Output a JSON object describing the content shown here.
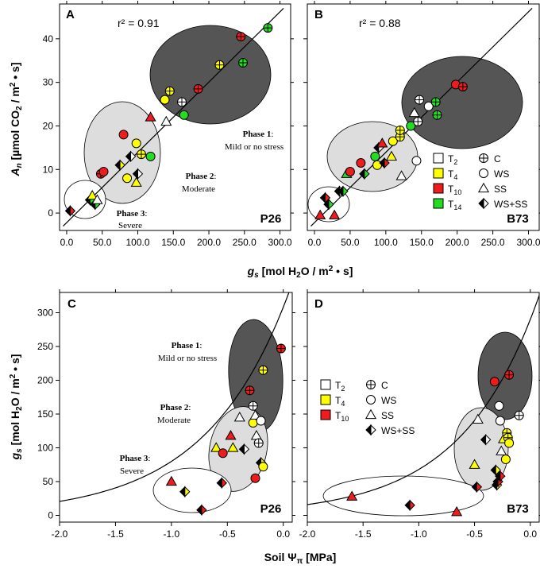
{
  "figure": {
    "shared_labels": {
      "top_x_axis": "g_s [mol H2O / m2 • s]",
      "top_y_axis": "A_n [µmol CO2 / m2 • s]",
      "bottom_x_axis": "Soil Ψπ [MPa]",
      "bottom_y_axis": "g_s [mol H2O / m2 • s]"
    },
    "labels": {
      "A": "A",
      "B": "B",
      "C": "C",
      "D": "D",
      "r2_A": "r² = 0.91",
      "r2_B": "r² = 0.88",
      "genotype_A": "P26",
      "genotype_B": "B73",
      "genotype_C": "P26",
      "genotype_D": "B73",
      "phase1_title": "Phase 1",
      "phase1_desc": "Mild or no stress",
      "phase2_title": "Phase 2",
      "phase2_desc": "Moderate",
      "phase3_title": "Phase 3",
      "phase3_desc": "Severe"
    },
    "legend_B": {
      "timepoints": [
        "T2",
        "T4",
        "T10",
        "T14"
      ],
      "treatments": [
        "C",
        "WS",
        "SS",
        "WS+SS"
      ]
    },
    "legend_D": {
      "timepoints": [
        "T2",
        "T4",
        "T10"
      ],
      "treatments": [
        "C",
        "WS",
        "SS",
        "WS+SS"
      ]
    },
    "colors": {
      "T2": "#ffffff",
      "T4": "#ffff00",
      "T10": "#ee1c1c",
      "T14": "#22dd22",
      "phase1": "#555555",
      "phase2": "#dddddd",
      "phase3": "#ffffff"
    }
  },
  "chart_data": [
    {
      "panel": "A",
      "type": "scatter",
      "genotype": "P26",
      "r2": 0.91,
      "xlabel": "g_s [mol H2O / m2 • s]",
      "ylabel": "A_n [µmol CO2 / m2 • s]",
      "xlim": [
        -10,
        315
      ],
      "ylim": [
        -4,
        48
      ],
      "xticks": [
        0,
        50,
        100,
        150,
        200,
        250,
        300
      ],
      "yticks": [
        0,
        10,
        20,
        30,
        40
      ],
      "fit_line": [
        [
          -5,
          -3
        ],
        [
          305,
          47
        ]
      ],
      "points": [
        {
          "x": 5,
          "y": 0.5,
          "t": "T10",
          "s": "WS+SS"
        },
        {
          "x": 33,
          "y": 3,
          "t": "T14",
          "s": "WS+SS"
        },
        {
          "x": 36,
          "y": 4,
          "t": "T4",
          "s": "SS"
        },
        {
          "x": 40,
          "y": 2,
          "t": "T14",
          "s": "WS+SS"
        },
        {
          "x": 43,
          "y": 3,
          "t": "T2",
          "s": "SS"
        },
        {
          "x": 48,
          "y": 9,
          "t": "T10",
          "s": "C"
        },
        {
          "x": 52,
          "y": 9.5,
          "t": "T10",
          "s": "WS"
        },
        {
          "x": 75,
          "y": 11,
          "t": "T4",
          "s": "WS+SS"
        },
        {
          "x": 80,
          "y": 18,
          "t": "T10",
          "s": "WS"
        },
        {
          "x": 85,
          "y": 8,
          "t": "T4",
          "s": "WS"
        },
        {
          "x": 90,
          "y": 13,
          "t": "T2",
          "s": "WS+SS"
        },
        {
          "x": 98,
          "y": 7,
          "t": "T4",
          "s": "SS"
        },
        {
          "x": 98,
          "y": 16,
          "t": "T4",
          "s": "WS"
        },
        {
          "x": 100,
          "y": 9,
          "t": "T2",
          "s": "WS+SS"
        },
        {
          "x": 105,
          "y": 13.5,
          "t": "T4",
          "s": "C"
        },
        {
          "x": 118,
          "y": 13,
          "t": "T14",
          "s": "WS"
        },
        {
          "x": 118,
          "y": 22,
          "t": "T10",
          "s": "SS"
        },
        {
          "x": 138,
          "y": 26,
          "t": "T4",
          "s": "WS"
        },
        {
          "x": 140,
          "y": 21,
          "t": "T2",
          "s": "SS"
        },
        {
          "x": 145,
          "y": 28,
          "t": "T4",
          "s": "C"
        },
        {
          "x": 162,
          "y": 25.5,
          "t": "T2",
          "s": "C"
        },
        {
          "x": 165,
          "y": 22.5,
          "t": "T14",
          "s": "WS"
        },
        {
          "x": 185,
          "y": 28.5,
          "t": "T10",
          "s": "C"
        },
        {
          "x": 215,
          "y": 34,
          "t": "T4",
          "s": "C"
        },
        {
          "x": 245,
          "y": 40.5,
          "t": "T10",
          "s": "C"
        },
        {
          "x": 248,
          "y": 34.5,
          "t": "T14",
          "s": "C"
        },
        {
          "x": 283,
          "y": 42.5,
          "t": "T14",
          "s": "C"
        }
      ]
    },
    {
      "panel": "B",
      "type": "scatter",
      "genotype": "B73",
      "r2": 0.88,
      "xlabel": "g_s [mol H2O / m2 • s]",
      "ylabel": "A_n [µmol CO2 / m2 • s]",
      "xlim": [
        -10,
        315
      ],
      "ylim": [
        -4,
        48
      ],
      "xticks": [
        0,
        50,
        100,
        150,
        200,
        250,
        300
      ],
      "yticks": [
        0,
        10,
        20,
        30,
        40
      ],
      "fit_line": [
        [
          -5,
          -3
        ],
        [
          305,
          47
        ]
      ],
      "points": [
        {
          "x": 8,
          "y": -0.5,
          "t": "T10",
          "s": "SS"
        },
        {
          "x": 15,
          "y": 3.5,
          "t": "T10",
          "s": "WS+SS"
        },
        {
          "x": 20,
          "y": 2,
          "t": "T14",
          "s": "WS+SS"
        },
        {
          "x": 28,
          "y": -0.5,
          "t": "T10",
          "s": "SS"
        },
        {
          "x": 35,
          "y": 5,
          "t": "T2",
          "s": "WS+SS"
        },
        {
          "x": 40,
          "y": 5,
          "t": "T14",
          "s": "WS+SS"
        },
        {
          "x": 45,
          "y": 9,
          "t": "T14",
          "s": "SS"
        },
        {
          "x": 50,
          "y": 9.5,
          "t": "T10",
          "s": "WS"
        },
        {
          "x": 65,
          "y": 11.5,
          "t": "T10",
          "s": "WS"
        },
        {
          "x": 70,
          "y": 9,
          "t": "T14",
          "s": "WS+SS"
        },
        {
          "x": 85,
          "y": 13,
          "t": "T14",
          "s": "WS"
        },
        {
          "x": 88,
          "y": 11,
          "t": "T4",
          "s": "WS"
        },
        {
          "x": 90,
          "y": 15,
          "t": "T2",
          "s": "WS+SS"
        },
        {
          "x": 95,
          "y": 16,
          "t": "T10",
          "s": "SS"
        },
        {
          "x": 98,
          "y": 11.5,
          "t": "T10",
          "s": "WS+SS"
        },
        {
          "x": 108,
          "y": 13,
          "t": "T4",
          "s": "SS"
        },
        {
          "x": 110,
          "y": 16.5,
          "t": "T4",
          "s": "WS"
        },
        {
          "x": 120,
          "y": 17.5,
          "t": "T4",
          "s": "C"
        },
        {
          "x": 120,
          "y": 19,
          "t": "T4",
          "s": "C"
        },
        {
          "x": 122,
          "y": 8.5,
          "t": "T2",
          "s": "SS"
        },
        {
          "x": 135,
          "y": 20,
          "t": "T14",
          "s": "WS"
        },
        {
          "x": 140,
          "y": 23,
          "t": "T2",
          "s": "SS"
        },
        {
          "x": 143,
          "y": 12,
          "t": "T2",
          "s": "WS"
        },
        {
          "x": 145,
          "y": 21,
          "t": "T2",
          "s": "C"
        },
        {
          "x": 147,
          "y": 26,
          "t": "T2",
          "s": "C"
        },
        {
          "x": 160,
          "y": 24.5,
          "t": "T2",
          "s": "WS"
        },
        {
          "x": 170,
          "y": 25.5,
          "t": "T14",
          "s": "C"
        },
        {
          "x": 172,
          "y": 22.5,
          "t": "T14",
          "s": "C"
        },
        {
          "x": 198,
          "y": 29.5,
          "t": "T10",
          "s": "WS"
        },
        {
          "x": 208,
          "y": 29,
          "t": "T10",
          "s": "C"
        }
      ]
    },
    {
      "panel": "C",
      "type": "scatter",
      "genotype": "P26",
      "xlabel": "Soil Ψπ [MPa]",
      "ylabel": "g_s [mol H2O / m2 • s]",
      "xlim": [
        -2.0,
        0.08
      ],
      "ylim": [
        -10,
        330
      ],
      "xticks": [
        -2.0,
        -1.5,
        -1.0,
        -0.5,
        0.0
      ],
      "yticks": [
        0,
        50,
        100,
        150,
        200,
        250,
        300
      ],
      "curve": "exponential",
      "points": [
        {
          "x": -1.0,
          "y": 50,
          "t": "T10",
          "s": "SS"
        },
        {
          "x": -0.88,
          "y": 35,
          "t": "T4",
          "s": "WS+SS"
        },
        {
          "x": -0.73,
          "y": 8,
          "t": "T10",
          "s": "WS+SS"
        },
        {
          "x": -0.6,
          "y": 100,
          "t": "T4",
          "s": "SS"
        },
        {
          "x": -0.55,
          "y": 48,
          "t": "T10",
          "s": "WS+SS"
        },
        {
          "x": -0.54,
          "y": 92,
          "t": "T10",
          "s": "WS"
        },
        {
          "x": -0.47,
          "y": 118,
          "t": "T10",
          "s": "SS"
        },
        {
          "x": -0.45,
          "y": 100,
          "t": "T4",
          "s": "SS"
        },
        {
          "x": -0.39,
          "y": 145,
          "t": "T2",
          "s": "SS"
        },
        {
          "x": -0.35,
          "y": 98,
          "t": "T2",
          "s": "WS+SS"
        },
        {
          "x": -0.3,
          "y": 185,
          "t": "T10",
          "s": "C"
        },
        {
          "x": -0.27,
          "y": 137,
          "t": "T4",
          "s": "WS"
        },
        {
          "x": -0.27,
          "y": 162,
          "t": "T2",
          "s": "C"
        },
        {
          "x": -0.25,
          "y": 55,
          "t": "T10",
          "s": "WS"
        },
        {
          "x": -0.25,
          "y": 148,
          "t": "T2",
          "s": "SS"
        },
        {
          "x": -0.24,
          "y": 118,
          "t": "T2",
          "s": "SS"
        },
        {
          "x": -0.2,
          "y": 140,
          "t": "T2",
          "s": "WS"
        },
        {
          "x": -0.2,
          "y": 78,
          "t": "T4",
          "s": "WS+SS"
        },
        {
          "x": -0.18,
          "y": 215,
          "t": "T4",
          "s": "C"
        },
        {
          "x": -0.18,
          "y": 72,
          "t": "T4",
          "s": "WS"
        },
        {
          "x": -0.22,
          "y": 107,
          "t": "T2",
          "s": "C"
        },
        {
          "x": -0.02,
          "y": 247,
          "t": "T10",
          "s": "C"
        }
      ]
    },
    {
      "panel": "D",
      "type": "scatter",
      "genotype": "B73",
      "xlabel": "Soil Ψπ [MPa]",
      "ylabel": "g_s [mol H2O / m2 • s]",
      "xlim": [
        -2.0,
        0.08
      ],
      "ylim": [
        -10,
        330
      ],
      "xticks": [
        -2.0,
        -1.5,
        -1.0,
        -0.5,
        0.0
      ],
      "yticks": [
        0,
        50,
        100,
        150,
        200,
        250,
        300
      ],
      "curve": "exponential",
      "points": [
        {
          "x": -1.6,
          "y": 28,
          "t": "T10",
          "s": "SS"
        },
        {
          "x": -1.08,
          "y": 15,
          "t": "T10",
          "s": "WS+SS"
        },
        {
          "x": -0.66,
          "y": 5,
          "t": "T10",
          "s": "SS"
        },
        {
          "x": -0.5,
          "y": 75,
          "t": "T4",
          "s": "SS"
        },
        {
          "x": -0.48,
          "y": 42,
          "t": "T10",
          "s": "WS+SS"
        },
        {
          "x": -0.47,
          "y": 142,
          "t": "T2",
          "s": "SS"
        },
        {
          "x": -0.4,
          "y": 112,
          "t": "T2",
          "s": "WS+SS"
        },
        {
          "x": -0.32,
          "y": 198,
          "t": "T10",
          "s": "WS"
        },
        {
          "x": -0.31,
          "y": 67,
          "t": "T4",
          "s": "WS+SS"
        },
        {
          "x": -0.3,
          "y": 45,
          "t": "T4",
          "s": "WS+SS"
        },
        {
          "x": -0.29,
          "y": 50,
          "t": "T10",
          "s": "WS+SS"
        },
        {
          "x": -0.28,
          "y": 162,
          "t": "T2",
          "s": "WS"
        },
        {
          "x": -0.27,
          "y": 140,
          "t": "T2",
          "s": "WS"
        },
        {
          "x": -0.27,
          "y": 58,
          "t": "T10",
          "s": "WS+SS"
        },
        {
          "x": -0.26,
          "y": 95,
          "t": "T2",
          "s": "SS"
        },
        {
          "x": -0.24,
          "y": 113,
          "t": "T4",
          "s": "SS"
        },
        {
          "x": -0.22,
          "y": 83,
          "t": "T4",
          "s": "WS"
        },
        {
          "x": -0.21,
          "y": 122,
          "t": "T4",
          "s": "C"
        },
        {
          "x": -0.2,
          "y": 115,
          "t": "T4",
          "s": "C"
        },
        {
          "x": -0.19,
          "y": 107,
          "t": "T4",
          "s": "WS"
        },
        {
          "x": -0.19,
          "y": 208,
          "t": "T10",
          "s": "C"
        },
        {
          "x": -0.1,
          "y": 148,
          "t": "T2",
          "s": "C"
        }
      ]
    }
  ]
}
